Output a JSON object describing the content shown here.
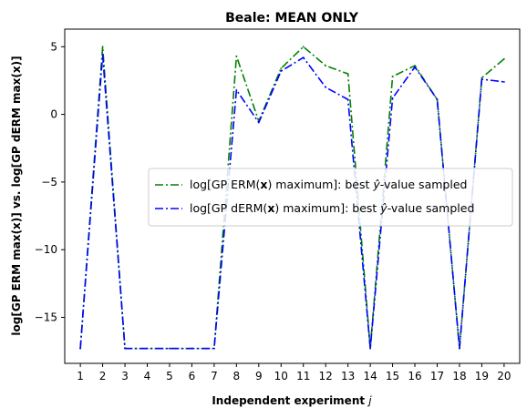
{
  "chart_data": {
    "type": "line",
    "title": "Beale: MEAN ONLY",
    "xlabel": "Independent experiment",
    "xlabel_var": "j",
    "ylabel": "log[GP ERM max(x)] vs. log[GP dERM max(x)]",
    "x": [
      1,
      2,
      3,
      4,
      5,
      6,
      7,
      8,
      9,
      10,
      11,
      12,
      13,
      14,
      15,
      16,
      17,
      18,
      19,
      20
    ],
    "xlim": [
      0.3,
      20.7
    ],
    "ylim": [
      -18.4,
      6.3
    ],
    "yticks": [
      5,
      0,
      -5,
      -10,
      -15
    ],
    "ytick_labels": [
      "5",
      "0",
      "−5",
      "−10",
      "−15"
    ],
    "grid": false,
    "legend_position": "center-right",
    "series": [
      {
        "name": "log[GP ERM(x) maximum]: best ŷ-value sampled",
        "legend_parts": [
          "log[GP ERM(",
          "x",
          ") maximum]: best ",
          "ŷ",
          "-value sampled"
        ],
        "color": "#008000",
        "linestyle": "dashdot",
        "values": [
          -17.3,
          5.0,
          -17.3,
          -17.3,
          -17.3,
          -17.3,
          -17.3,
          4.3,
          -0.5,
          3.4,
          5.0,
          3.6,
          3.0,
          -17.3,
          2.8,
          3.6,
          1.1,
          -17.3,
          2.7,
          4.1
        ]
      },
      {
        "name": "log[GP dERM(x) maximum]: best ŷ-value sampled",
        "legend_parts": [
          "log[GP dERM(",
          "x",
          ") maximum]: best ",
          "ŷ",
          "-value sampled"
        ],
        "color": "#0000ff",
        "linestyle": "dashdot",
        "values": [
          -17.3,
          4.4,
          -17.3,
          -17.3,
          -17.3,
          -17.3,
          -17.3,
          1.8,
          -0.6,
          3.2,
          4.2,
          2.0,
          1.1,
          -17.3,
          1.2,
          3.5,
          1.1,
          -17.3,
          2.6,
          2.4
        ]
      }
    ]
  }
}
